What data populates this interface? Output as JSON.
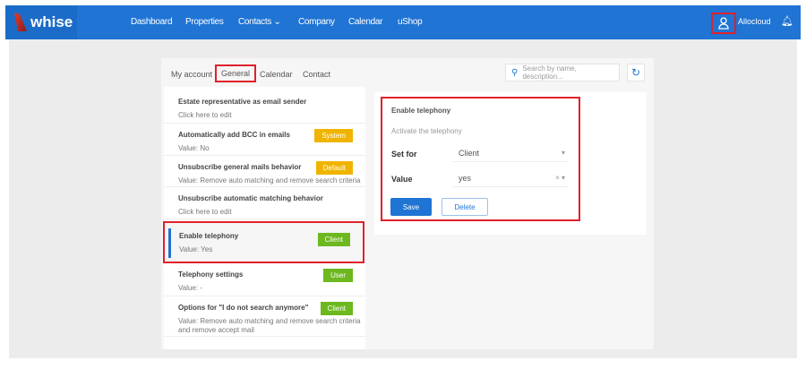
{
  "nav": {
    "brand": "whise",
    "items": [
      "Dashboard",
      "Properties",
      "Contacts ⌄",
      "Company",
      "Calendar",
      "uShop"
    ],
    "user": "Allocloud"
  },
  "tabs": [
    "My account",
    "General",
    "Calendar",
    "Contact"
  ],
  "search": {
    "placeholder": "Search by name, description..."
  },
  "settings": [
    {
      "title": "Estate representative as email sender",
      "value": "Click here to edit",
      "badge": "",
      "color": ""
    },
    {
      "title": "Automatically add BCC in emails",
      "value": "Value: No",
      "badge": "System",
      "color": "#f0b400"
    },
    {
      "title": "Unsubscribe general mails behavior",
      "value": "Value: Remove auto matching and remove search criteria",
      "badge": "Default",
      "color": "#f0b400"
    },
    {
      "title": "Unsubscribe automatic matching behavior",
      "value": "Click here to edit",
      "badge": "",
      "color": ""
    },
    {
      "title": "Enable telephony",
      "value": "Value: Yes",
      "badge": "Client",
      "color": "#6cb81e"
    },
    {
      "title": "Telephony settings",
      "value": "Value: -",
      "badge": "User",
      "color": "#6cb81e"
    },
    {
      "title": "Options for \"I do not search anymore\"",
      "value": "Value: Remove auto matching and remove search criteria and remove accept mail",
      "badge": "Client",
      "color": "#6cb81e"
    }
  ],
  "detail": {
    "title": "Enable telephony",
    "description": "Activate the telephony",
    "set_for_label": "Set for",
    "set_for_value": "Client",
    "value_label": "Value",
    "value_value": "yes",
    "save": "Save",
    "delete": "Delete"
  }
}
